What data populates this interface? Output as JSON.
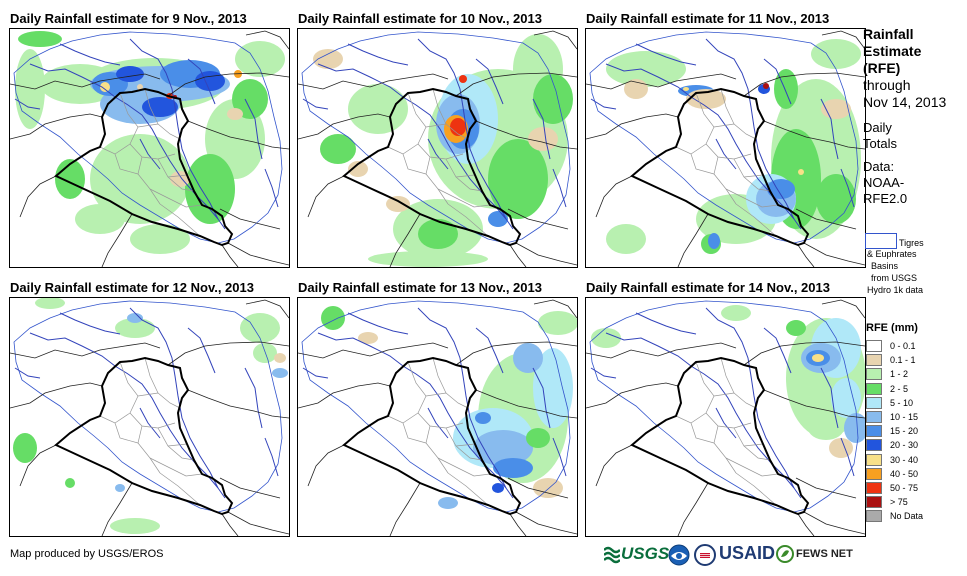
{
  "panels": [
    {
      "title": "Daily Rainfall estimate for 9 Nov., 2013"
    },
    {
      "title": "Daily Rainfall estimate for 10 Nov., 2013"
    },
    {
      "title": "Daily Rainfall estimate for 11 Nov., 2013"
    },
    {
      "title": "Daily Rainfall estimate for 12 Nov., 2013"
    },
    {
      "title": "Daily Rainfall estimate for 13 Nov., 2013"
    },
    {
      "title": "Daily Rainfall estimate for 14 Nov., 2013"
    }
  ],
  "side": {
    "title_lines": [
      "Rainfall",
      "Estimate",
      "(RFE)"
    ],
    "through": "through",
    "date": "Nov 14, 2013",
    "daily": "Daily",
    "totals": "Totals",
    "data_label": "Data:",
    "data_source_1": "NOAA-",
    "data_source_2": "RFE2.0",
    "basin_lines": [
      "Tigres",
      "& Euphrates",
      "Basins",
      "from USGS",
      "Hydro 1k data"
    ]
  },
  "legend": {
    "title": "RFE (mm)",
    "items": [
      {
        "label": "0 - 0.1",
        "color": "#ffffff"
      },
      {
        "label": "0.1 - 1",
        "color": "#e8d4b0"
      },
      {
        "label": "1 - 2",
        "color": "#b8f0b0"
      },
      {
        "label": "2 - 5",
        "color": "#66dd66"
      },
      {
        "label": "5 - 10",
        "color": "#b0e8f8"
      },
      {
        "label": "10 - 15",
        "color": "#88bbee"
      },
      {
        "label": "15 - 20",
        "color": "#4a8ee8"
      },
      {
        "label": "20 - 30",
        "color": "#2255dd"
      },
      {
        "label": "30 - 40",
        "color": "#f8e088"
      },
      {
        "label": "40 - 50",
        "color": "#f8a020"
      },
      {
        "label": "50 - 75",
        "color": "#ee3311"
      },
      {
        "label": "> 75",
        "color": "#aa1111"
      },
      {
        "label": "No Data",
        "color": "#aaaaaa"
      }
    ]
  },
  "footer": "Map produced by USGS/EROS",
  "logos": {
    "usgs": "USGS",
    "usaid": "USAID",
    "fews": "FEWS NET"
  }
}
